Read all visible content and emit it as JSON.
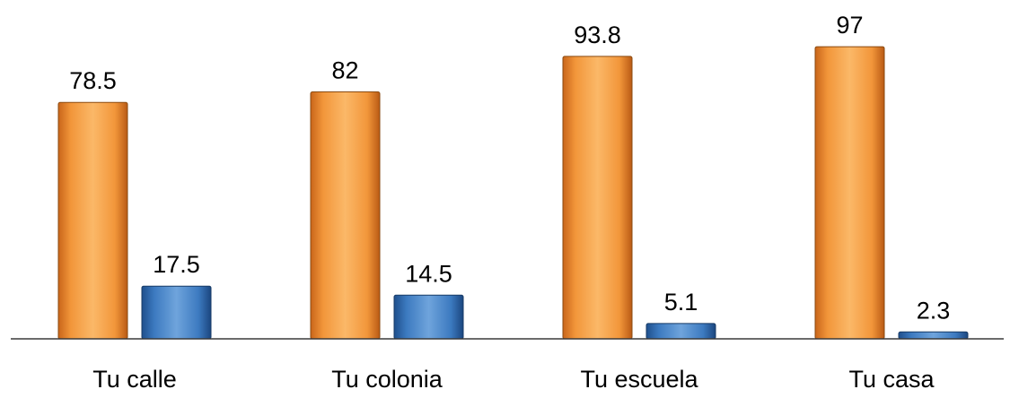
{
  "chart_data": {
    "type": "bar",
    "categories": [
      "Tu calle",
      "Tu colonia",
      "Tu escuela",
      "Tu casa"
    ],
    "series": [
      {
        "values": [
          78.5,
          82,
          93.8,
          97
        ],
        "color": "#F39A3A"
      },
      {
        "values": [
          17.5,
          14.5,
          5.1,
          2.3
        ],
        "color": "#3F7FC4"
      }
    ],
    "ylim": [
      0,
      100
    ],
    "grid": false,
    "legend": "none",
    "title": "",
    "xlabel": "",
    "ylabel": ""
  }
}
